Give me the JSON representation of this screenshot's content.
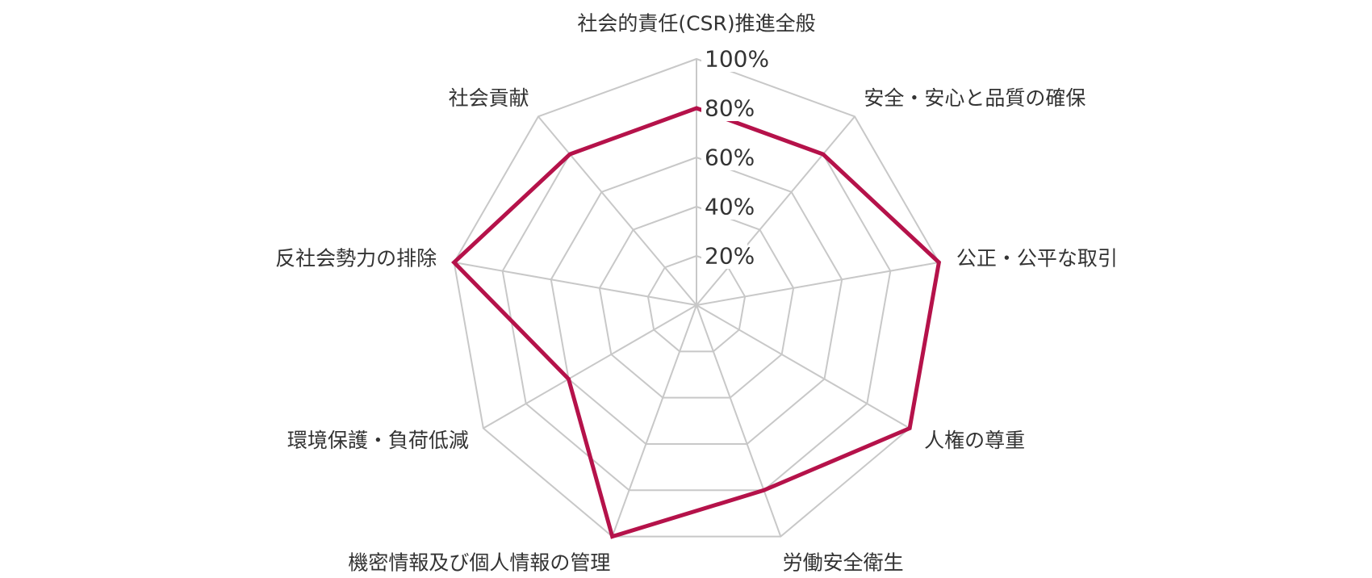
{
  "chart_data": {
    "type": "radar",
    "title": "",
    "categories": [
      "社会的責任(CSR)推進全般",
      "安全・安心と品質の確保",
      "公正・公平な取引",
      "人権の尊重",
      "労働安全衛生",
      "機密情報及び個人情報の管理",
      "環境保護・負荷低減",
      "反社会勢力の排除",
      "社会貢献"
    ],
    "series": [
      {
        "values": [
          0.8,
          0.8,
          1.0,
          1.0,
          0.8,
          1.0,
          0.6,
          1.0,
          0.8
        ]
      }
    ],
    "r_ticks": [
      "20%",
      "40%",
      "60%",
      "80%",
      "100%"
    ],
    "r_range": [
      0,
      1
    ],
    "grid": true,
    "legend": "none",
    "colors": {
      "series": "#b5124a",
      "grid": "#c8c8c8",
      "text": "#333333"
    }
  }
}
